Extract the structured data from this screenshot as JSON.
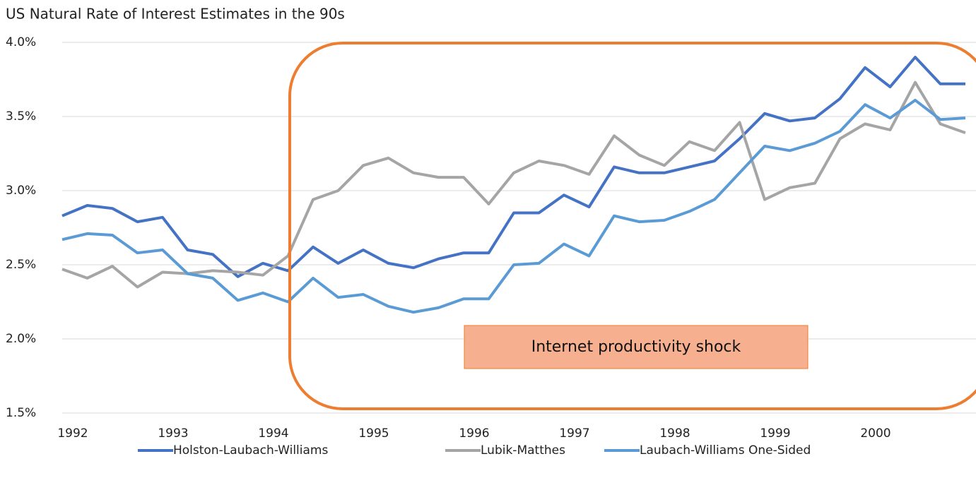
{
  "chart_data": {
    "type": "line",
    "title": "US Natural Rate of Interest Estimates in the 90s",
    "annotation": "Internet productivity shock",
    "categories": [
      "1992",
      null,
      null,
      null,
      "1993",
      null,
      null,
      null,
      "1994",
      null,
      null,
      null,
      "1995",
      null,
      null,
      null,
      "1996",
      null,
      null,
      null,
      "1997",
      null,
      null,
      null,
      "1998",
      null,
      null,
      null,
      "1999",
      null,
      null,
      null,
      "2000",
      null,
      null,
      null,
      null
    ],
    "series": [
      {
        "name": "Holston-Laubach-Williams",
        "color": "#4472c4",
        "values": [
          2.83,
          2.9,
          2.88,
          2.79,
          2.82,
          2.6,
          2.57,
          2.42,
          2.51,
          2.46,
          2.62,
          2.51,
          2.6,
          2.51,
          2.48,
          2.54,
          2.58,
          2.58,
          2.85,
          2.85,
          2.97,
          2.89,
          3.16,
          3.12,
          3.12,
          3.16,
          3.2,
          3.35,
          3.52,
          3.47,
          3.49,
          3.62,
          3.83,
          3.7,
          3.9,
          3.72,
          3.72
        ]
      },
      {
        "name": "Lubik-Matthes",
        "color": "#a5a5a5",
        "values": [
          2.47,
          2.41,
          2.49,
          2.35,
          2.45,
          2.44,
          2.46,
          2.45,
          2.43,
          2.56,
          2.94,
          3.0,
          3.17,
          3.22,
          3.12,
          3.09,
          3.09,
          2.91,
          3.12,
          3.2,
          3.17,
          3.11,
          3.37,
          3.24,
          3.17,
          3.33,
          3.27,
          3.46,
          2.94,
          3.02,
          3.05,
          3.35,
          3.45,
          3.41,
          3.73,
          3.45,
          3.39
        ]
      },
      {
        "name": "Laubach-Williams One-Sided",
        "color": "#5b9bd5",
        "values": [
          2.67,
          2.71,
          2.7,
          2.58,
          2.6,
          2.44,
          2.41,
          2.26,
          2.31,
          2.25,
          2.41,
          2.28,
          2.3,
          2.22,
          2.18,
          2.21,
          2.27,
          2.27,
          2.5,
          2.51,
          2.64,
          2.56,
          2.83,
          2.79,
          2.8,
          2.86,
          2.94,
          3.12,
          3.3,
          3.27,
          3.32,
          3.4,
          3.58,
          3.49,
          3.61,
          3.48,
          3.49
        ]
      }
    ],
    "ylim": [
      1.5,
      4.0
    ],
    "yticks": [
      {
        "value": 1.5,
        "label": "1.5%"
      },
      {
        "value": 2.0,
        "label": "2.0%"
      },
      {
        "value": 2.5,
        "label": "2.5%"
      },
      {
        "value": 3.0,
        "label": "3.0%"
      },
      {
        "value": 3.5,
        "label": "3.5%"
      },
      {
        "value": 4.0,
        "label": "4.0%"
      }
    ],
    "grid": true
  }
}
